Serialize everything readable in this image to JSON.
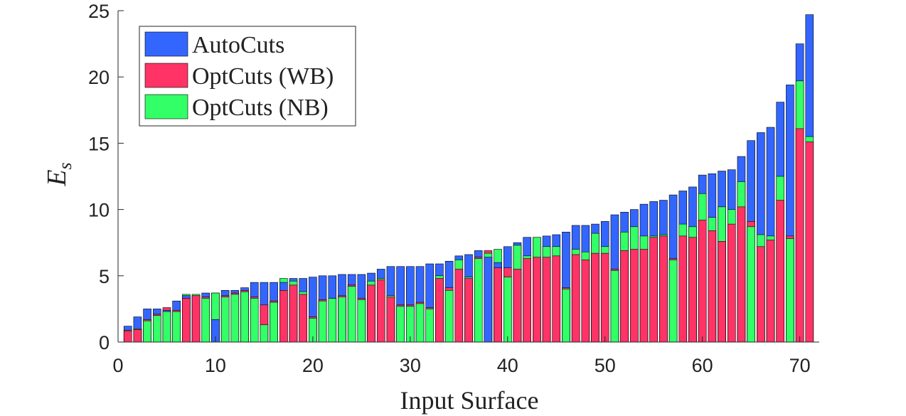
{
  "chart_data": {
    "type": "bar",
    "xlabel": "Input Surface",
    "ylabel": "E_s",
    "x": [
      1,
      2,
      3,
      4,
      5,
      6,
      7,
      8,
      9,
      10,
      11,
      12,
      13,
      14,
      15,
      16,
      17,
      18,
      19,
      20,
      21,
      22,
      23,
      24,
      25,
      26,
      27,
      28,
      29,
      30,
      31,
      32,
      33,
      34,
      35,
      36,
      37,
      38,
      39,
      40,
      41,
      42,
      43,
      44,
      45,
      46,
      47,
      48,
      49,
      50,
      51,
      52,
      53,
      54,
      55,
      56,
      57,
      58,
      59,
      60,
      61,
      62,
      63,
      64,
      65,
      66,
      67,
      68,
      69,
      70,
      71
    ],
    "series": [
      {
        "name": "AutoCuts",
        "color": "#3366ff",
        "values": [
          1.2,
          1.9,
          2.5,
          2.5,
          2.4,
          3.1,
          3.5,
          3.5,
          3.7,
          1.7,
          3.9,
          3.9,
          4.1,
          4.5,
          4.5,
          4.5,
          4.5,
          4.8,
          4.8,
          4.9,
          5.0,
          5.0,
          5.1,
          5.1,
          5.1,
          5.2,
          5.5,
          5.7,
          5.7,
          5.7,
          5.7,
          5.9,
          5.9,
          6.1,
          6.5,
          6.6,
          6.9,
          6.4,
          6.0,
          7.2,
          7.5,
          7.9,
          7.9,
          8.0,
          8.1,
          8.3,
          8.8,
          8.8,
          8.9,
          9.1,
          9.6,
          9.8,
          10.0,
          10.4,
          10.6,
          10.7,
          11.1,
          11.4,
          11.7,
          12.6,
          12.7,
          12.9,
          13.0,
          14.0,
          15.2,
          15.8,
          16.2,
          18.1,
          19.4,
          22.5,
          24.7
        ]
      },
      {
        "name": "OptCuts (WB)",
        "color": "#ff3366",
        "values": [
          0.85,
          0.95,
          1.7,
          2.1,
          2.6,
          2.4,
          3.3,
          3.5,
          3.4,
          3.7,
          3.5,
          3.7,
          3.9,
          3.4,
          2.8,
          3.1,
          3.9,
          4.3,
          3.6,
          1.9,
          3.2,
          3.3,
          3.5,
          4.3,
          3.3,
          4.3,
          4.7,
          3.4,
          2.8,
          2.8,
          3.0,
          2.6,
          4.8,
          4.1,
          5.5,
          4.8,
          6.4,
          6.9,
          5.6,
          5.6,
          5.5,
          6.3,
          6.4,
          6.4,
          6.5,
          4.1,
          6.6,
          6.2,
          6.7,
          6.7,
          5.5,
          6.9,
          7.0,
          7.0,
          7.9,
          8.0,
          6.3,
          8.0,
          7.9,
          9.2,
          8.4,
          7.6,
          8.9,
          10.2,
          9.1,
          7.2,
          7.7,
          10.7,
          8.0,
          16.1,
          15.1
        ]
      },
      {
        "name": "OptCuts (NB)",
        "color": "#33ff66",
        "values": [
          0.9,
          1.0,
          1.6,
          2.0,
          2.3,
          2.3,
          3.6,
          3.6,
          3.3,
          3.7,
          3.4,
          3.6,
          3.8,
          3.3,
          1.3,
          3.0,
          4.8,
          4.6,
          3.8,
          1.8,
          3.1,
          3.3,
          3.4,
          4.2,
          3.2,
          4.6,
          4.8,
          3.5,
          2.7,
          2.7,
          2.9,
          2.5,
          5.0,
          3.9,
          6.2,
          4.9,
          6.3,
          6.7,
          7.0,
          4.9,
          7.3,
          6.5,
          7.9,
          7.2,
          7.2,
          4.0,
          7.0,
          6.8,
          8.2,
          7.2,
          5.4,
          8.3,
          8.7,
          8.0,
          8.0,
          8.1,
          6.2,
          8.9,
          8.7,
          11.2,
          9.4,
          10.2,
          10.0,
          12.1,
          8.7,
          8.1,
          8.0,
          12.5,
          7.8,
          19.7,
          15.5
        ]
      }
    ],
    "xlim": [
      0,
      72
    ],
    "xticks": [
      0,
      10,
      20,
      30,
      40,
      50,
      60,
      70
    ],
    "ylim": [
      0,
      25
    ],
    "yticks": [
      0,
      5,
      10,
      15,
      20,
      25
    ],
    "legend": "upper-left"
  }
}
